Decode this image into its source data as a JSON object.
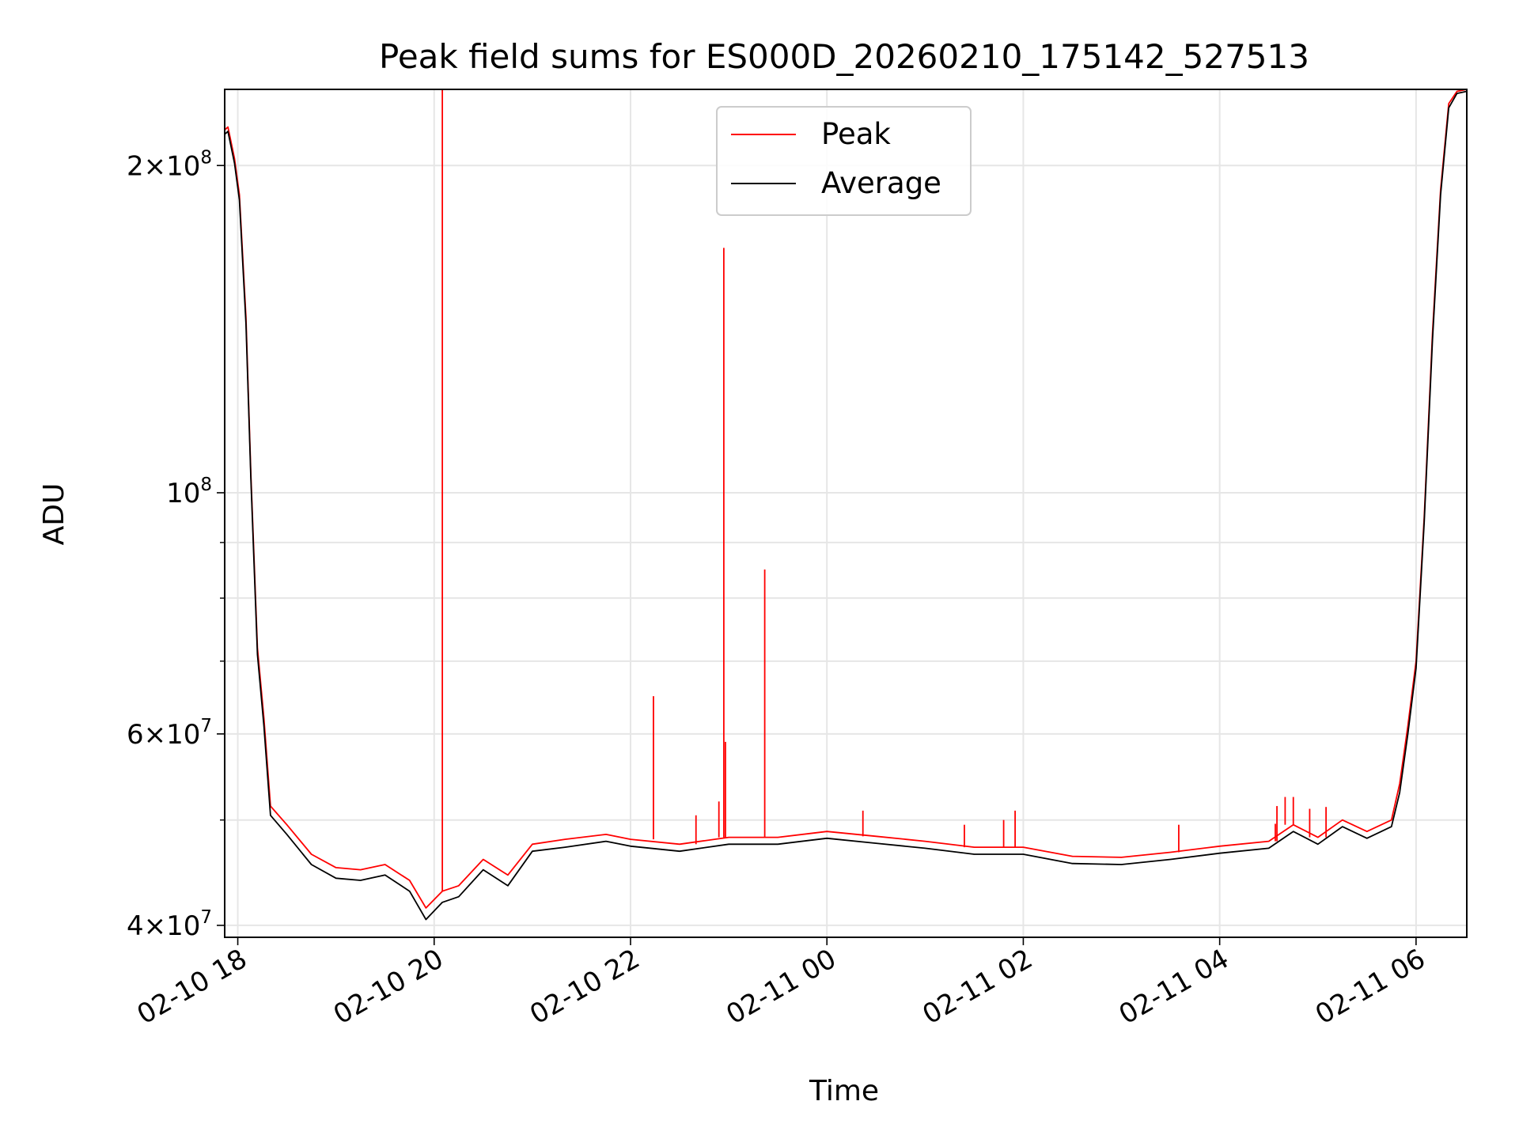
{
  "chart_data": {
    "type": "line",
    "title": "Peak field sums for ES000D_20260210_175142_527513",
    "xlabel": "Time",
    "ylabel": "ADU",
    "y_scale": "log",
    "ylim": [
      39000000,
      235000000
    ],
    "xlim": [
      "2026-02-10 17:52",
      "2026-02-11 06:31"
    ],
    "grid": true,
    "legend_position": "upper center",
    "x_ticks": [
      {
        "t": "2026-02-10 18:00",
        "label": "02-10 18"
      },
      {
        "t": "2026-02-10 20:00",
        "label": "02-10 20"
      },
      {
        "t": "2026-02-10 22:00",
        "label": "02-10 22"
      },
      {
        "t": "2026-02-11 00:00",
        "label": "02-11 00"
      },
      {
        "t": "2026-02-11 02:00",
        "label": "02-11 02"
      },
      {
        "t": "2026-02-11 04:00",
        "label": "02-11 04"
      },
      {
        "t": "2026-02-11 06:00",
        "label": "02-11 06"
      }
    ],
    "y_ticks_major": [
      {
        "v": 40000000,
        "base": "4×10",
        "exp": "7"
      },
      {
        "v": 60000000,
        "base": "6×10",
        "exp": "7"
      },
      {
        "v": 100000000,
        "base": "10",
        "exp": "8"
      },
      {
        "v": 200000000,
        "base": "2×10",
        "exp": "8"
      }
    ],
    "y_ticks_minor": [
      50000000,
      70000000,
      80000000,
      90000000
    ],
    "series": [
      {
        "name": "Peak",
        "color": "#ff0000",
        "x": [
          "2026-02-10 17:51",
          "2026-02-10 17:54",
          "2026-02-10 17:58",
          "2026-02-10 18:01",
          "2026-02-10 18:05",
          "2026-02-10 18:08",
          "2026-02-10 18:12",
          "2026-02-10 18:16",
          "2026-02-10 18:20",
          "2026-02-10 18:30",
          "2026-02-10 18:45",
          "2026-02-10 19:00",
          "2026-02-10 19:15",
          "2026-02-10 19:30",
          "2026-02-10 19:45",
          "2026-02-10 19:55",
          "2026-02-10 20:05",
          "2026-02-10 20:15",
          "2026-02-10 20:30",
          "2026-02-10 20:45",
          "2026-02-10 21:00",
          "2026-02-10 21:20",
          "2026-02-10 21:45",
          "2026-02-10 22:00",
          "2026-02-10 22:30",
          "2026-02-10 23:00",
          "2026-02-10 23:30",
          "2026-02-11 00:00",
          "2026-02-11 00:30",
          "2026-02-11 01:00",
          "2026-02-11 01:30",
          "2026-02-11 02:00",
          "2026-02-11 02:30",
          "2026-02-11 03:00",
          "2026-02-11 03:30",
          "2026-02-11 04:00",
          "2026-02-11 04:30",
          "2026-02-11 04:45",
          "2026-02-11 05:00",
          "2026-02-11 05:15",
          "2026-02-11 05:30",
          "2026-02-11 05:45",
          "2026-02-11 05:50",
          "2026-02-11 05:55",
          "2026-02-11 06:00",
          "2026-02-11 06:05",
          "2026-02-11 06:10",
          "2026-02-11 06:15",
          "2026-02-11 06:20",
          "2026-02-11 06:25",
          "2026-02-11 06:31"
        ],
        "y": [
          215000000,
          217000000,
          203000000,
          188000000,
          145000000,
          104000000,
          72000000,
          62000000,
          51500000,
          49500000,
          46500000,
          45200000,
          45000000,
          45500000,
          44000000,
          41500000,
          43000000,
          43500000,
          46000000,
          44500000,
          47500000,
          48000000,
          48500000,
          48000000,
          47500000,
          48200000,
          48200000,
          48800000,
          48300000,
          47800000,
          47200000,
          47200000,
          46300000,
          46200000,
          46700000,
          47300000,
          47800000,
          49500000,
          48200000,
          50000000,
          48800000,
          50000000,
          54000000,
          61000000,
          70000000,
          95000000,
          140000000,
          190000000,
          228000000,
          234000000,
          235000000
        ]
      },
      {
        "name": "Average",
        "color": "#000000",
        "x": [
          "2026-02-10 17:51",
          "2026-02-10 17:54",
          "2026-02-10 17:58",
          "2026-02-10 18:01",
          "2026-02-10 18:05",
          "2026-02-10 18:08",
          "2026-02-10 18:12",
          "2026-02-10 18:16",
          "2026-02-10 18:20",
          "2026-02-10 18:30",
          "2026-02-10 18:45",
          "2026-02-10 19:00",
          "2026-02-10 19:15",
          "2026-02-10 19:30",
          "2026-02-10 19:45",
          "2026-02-10 19:55",
          "2026-02-10 20:05",
          "2026-02-10 20:15",
          "2026-02-10 20:30",
          "2026-02-10 20:45",
          "2026-02-10 21:00",
          "2026-02-10 21:20",
          "2026-02-10 21:45",
          "2026-02-10 22:00",
          "2026-02-10 22:30",
          "2026-02-10 23:00",
          "2026-02-10 23:30",
          "2026-02-11 00:00",
          "2026-02-11 00:30",
          "2026-02-11 01:00",
          "2026-02-11 01:30",
          "2026-02-11 02:00",
          "2026-02-11 02:30",
          "2026-02-11 03:00",
          "2026-02-11 03:30",
          "2026-02-11 04:00",
          "2026-02-11 04:30",
          "2026-02-11 04:45",
          "2026-02-11 05:00",
          "2026-02-11 05:15",
          "2026-02-11 05:30",
          "2026-02-11 05:45",
          "2026-02-11 05:50",
          "2026-02-11 05:55",
          "2026-02-11 06:00",
          "2026-02-11 06:05",
          "2026-02-11 06:10",
          "2026-02-11 06:15",
          "2026-02-11 06:20",
          "2026-02-11 06:25",
          "2026-02-11 06:31"
        ],
        "y": [
          213000000,
          215000000,
          201000000,
          186000000,
          143000000,
          103000000,
          71000000,
          61000000,
          50500000,
          48500000,
          45500000,
          44200000,
          44000000,
          44500000,
          43000000,
          40500000,
          42000000,
          42500000,
          45000000,
          43500000,
          46800000,
          47200000,
          47800000,
          47300000,
          46800000,
          47500000,
          47500000,
          48100000,
          47600000,
          47100000,
          46500000,
          46500000,
          45600000,
          45500000,
          46000000,
          46600000,
          47100000,
          48800000,
          47500000,
          49300000,
          48100000,
          49300000,
          53000000,
          60000000,
          69000000,
          94000000,
          138000000,
          188000000,
          226000000,
          233000000,
          234000000
        ]
      }
    ],
    "peak_spikes": [
      {
        "x": "2026-02-10 20:05",
        "y": 235000000
      },
      {
        "x": "2026-02-10 22:14",
        "y": 65000000
      },
      {
        "x": "2026-02-10 22:40",
        "y": 50500000
      },
      {
        "x": "2026-02-10 22:54",
        "y": 52000000
      },
      {
        "x": "2026-02-10 22:57",
        "y": 168000000
      },
      {
        "x": "2026-02-10 22:58",
        "y": 59000000
      },
      {
        "x": "2026-02-10 23:22",
        "y": 85000000
      },
      {
        "x": "2026-02-11 00:22",
        "y": 51000000
      },
      {
        "x": "2026-02-11 01:24",
        "y": 49500000
      },
      {
        "x": "2026-02-11 01:48",
        "y": 50000000
      },
      {
        "x": "2026-02-11 01:55",
        "y": 51000000
      },
      {
        "x": "2026-02-11 03:35",
        "y": 49500000
      },
      {
        "x": "2026-02-11 04:34",
        "y": 49600000
      },
      {
        "x": "2026-02-11 04:35",
        "y": 51500000
      },
      {
        "x": "2026-02-11 04:40",
        "y": 52500000
      },
      {
        "x": "2026-02-11 04:45",
        "y": 52500000
      },
      {
        "x": "2026-02-11 04:55",
        "y": 51200000
      },
      {
        "x": "2026-02-11 05:05",
        "y": 51400000
      }
    ]
  }
}
